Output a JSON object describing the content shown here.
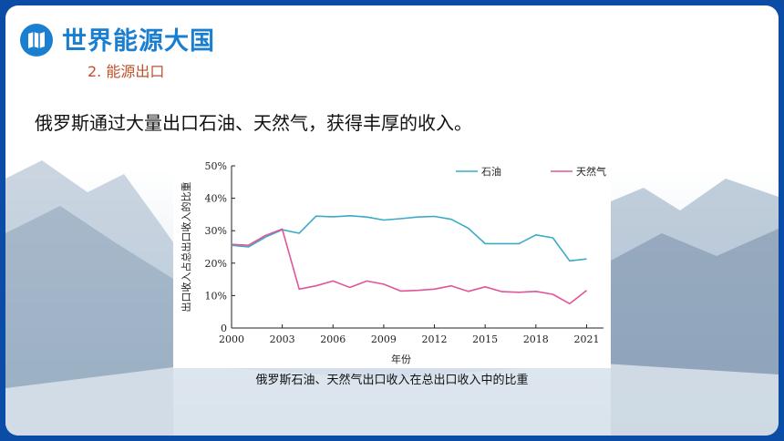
{
  "header": {
    "icon": "map-icon",
    "title": "世界能源大国",
    "subtitle": "2. 能源出口"
  },
  "body": {
    "text": "俄罗斯通过大量出口石油、天然气，获得丰厚的收入。"
  },
  "colors": {
    "accent": "#1a7fd0",
    "subtitle": "#c0512a",
    "oil": "#3aaac8",
    "gas": "#e0559a"
  },
  "chart_data": {
    "type": "line",
    "caption": "俄罗斯石油、天然气出口收入在总出口收入中的比重",
    "xlabel": "年份",
    "ylabel": "出口收入占总出口收入的比重",
    "xlim": [
      2000,
      2022
    ],
    "ylim": [
      0,
      50
    ],
    "x_ticks": [
      "2000",
      "2003",
      "2006",
      "2009",
      "2012",
      "2015",
      "2018",
      "2021"
    ],
    "y_ticks": [
      "0",
      "10%",
      "20%",
      "30%",
      "40%",
      "50%"
    ],
    "legend_position": "top-right",
    "grid": false,
    "series": [
      {
        "name": "石油",
        "color": "#3aaac8",
        "points": [
          [
            2000,
            25.5
          ],
          [
            2001,
            25.0
          ],
          [
            2002,
            28.0
          ],
          [
            2003,
            30.3
          ],
          [
            2004,
            29.2
          ],
          [
            2005,
            34.5
          ],
          [
            2006,
            34.3
          ],
          [
            2007,
            34.6
          ],
          [
            2008,
            34.2
          ],
          [
            2009,
            33.3
          ],
          [
            2010,
            33.7
          ],
          [
            2011,
            34.2
          ],
          [
            2012,
            34.4
          ],
          [
            2013,
            33.5
          ],
          [
            2014,
            30.8
          ],
          [
            2015,
            26.0
          ],
          [
            2016,
            26.0
          ],
          [
            2017,
            26.0
          ],
          [
            2018,
            28.7
          ],
          [
            2019,
            27.8
          ],
          [
            2020,
            20.7
          ],
          [
            2021,
            21.3
          ]
        ]
      },
      {
        "name": "天然气",
        "color": "#e0559a",
        "points": [
          [
            2000,
            25.8
          ],
          [
            2001,
            25.5
          ],
          [
            2002,
            28.5
          ],
          [
            2003,
            30.5
          ],
          [
            2004,
            12.0
          ],
          [
            2005,
            13.0
          ],
          [
            2006,
            14.5
          ],
          [
            2007,
            12.5
          ],
          [
            2008,
            14.5
          ],
          [
            2009,
            13.5
          ],
          [
            2010,
            11.4
          ],
          [
            2011,
            11.6
          ],
          [
            2012,
            12.0
          ],
          [
            2013,
            13.0
          ],
          [
            2014,
            11.3
          ],
          [
            2015,
            12.7
          ],
          [
            2016,
            11.2
          ],
          [
            2017,
            11.0
          ],
          [
            2018,
            11.3
          ],
          [
            2019,
            10.4
          ],
          [
            2020,
            7.5
          ],
          [
            2021,
            11.6
          ]
        ]
      }
    ]
  }
}
